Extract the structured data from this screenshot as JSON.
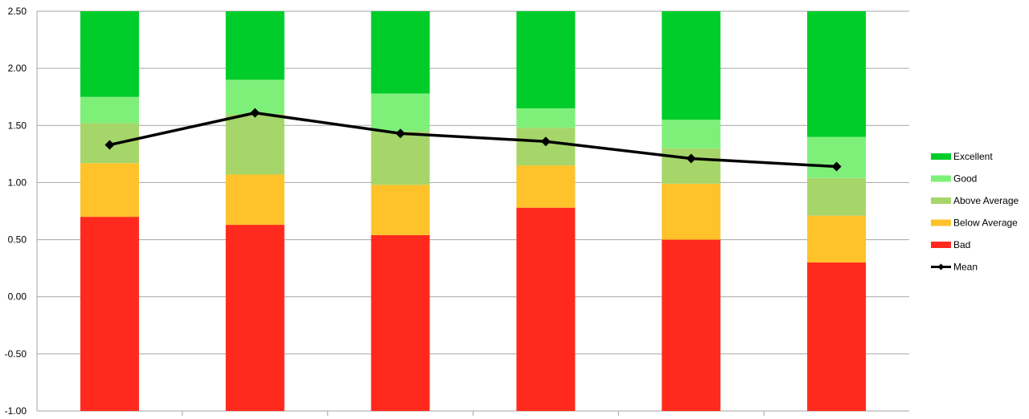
{
  "chart_data": {
    "type": "bar",
    "stacked": true,
    "categories": [
      "",
      "",
      "",
      "",
      "",
      ""
    ],
    "y_ticks": [
      "2.50",
      "2.00",
      "1.50",
      "1.00",
      "0.50",
      "0.00",
      "-0.50",
      "-1.00"
    ],
    "ylim": [
      -1.0,
      2.5
    ],
    "grid": true,
    "legend_position": "right",
    "series": [
      {
        "name": "Bad",
        "color": "#ff2a1d",
        "bottoms": [
          -1.0,
          -1.0,
          -1.0,
          -1.0,
          -1.0,
          -1.0
        ],
        "tops": [
          0.7,
          0.63,
          0.54,
          0.78,
          0.5,
          0.3
        ]
      },
      {
        "name": "Below Average",
        "color": "#ffc22b",
        "bottoms": [
          0.7,
          0.63,
          0.54,
          0.78,
          0.5,
          0.3
        ],
        "tops": [
          1.17,
          1.07,
          0.98,
          1.15,
          0.99,
          0.71
        ]
      },
      {
        "name": "Above Average",
        "color": "#a6d66a",
        "bottoms": [
          1.17,
          1.07,
          0.98,
          1.15,
          0.99,
          0.71
        ],
        "tops": [
          1.52,
          1.6,
          1.45,
          1.48,
          1.3,
          1.04
        ]
      },
      {
        "name": "Good",
        "color": "#7ef07a",
        "bottoms": [
          1.52,
          1.6,
          1.45,
          1.48,
          1.3,
          1.04
        ],
        "tops": [
          1.75,
          1.9,
          1.78,
          1.65,
          1.55,
          1.4
        ]
      },
      {
        "name": "Excellent",
        "color": "#00cc2a",
        "bottoms": [
          1.75,
          1.9,
          1.78,
          1.65,
          1.55,
          1.4
        ],
        "tops": [
          2.5,
          2.5,
          2.5,
          2.5,
          2.5,
          2.5
        ]
      }
    ],
    "mean": {
      "name": "Mean",
      "color": "#000000",
      "values": [
        1.33,
        1.61,
        1.43,
        1.36,
        1.21,
        1.14
      ]
    },
    "legend": [
      "Excellent",
      "Good",
      "Above Average",
      "Below Average",
      "Bad",
      "Mean"
    ]
  }
}
